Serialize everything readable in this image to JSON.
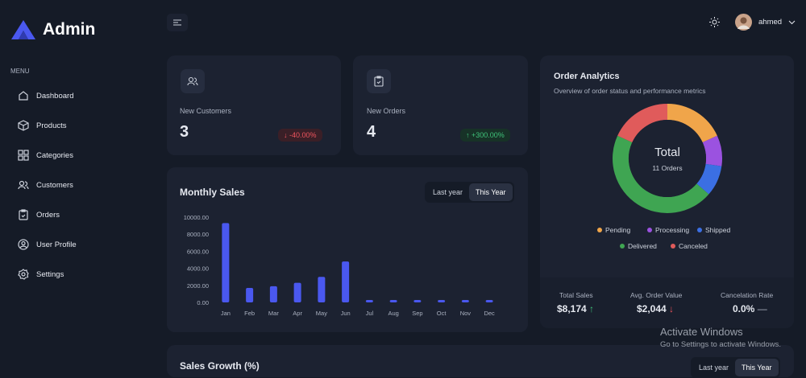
{
  "brand": "Admin",
  "sidebar": {
    "section": "MENU",
    "items": [
      "Dashboard",
      "Products",
      "Categories",
      "Customers",
      "Orders",
      "User Profile",
      "Settings"
    ]
  },
  "header": {
    "user": "ahmed"
  },
  "cards": [
    {
      "label": "New Customers",
      "value": 3,
      "change": "-40.00%"
    },
    {
      "label": "New Orders",
      "value": 4,
      "change": "+300.00%"
    }
  ],
  "monthly_sales": {
    "type": "bar",
    "title": "Monthly Sales",
    "toggle": [
      "Last year",
      "This Year"
    ],
    "categories": [
      "Jan",
      "Feb",
      "Mar",
      "Apr",
      "May",
      "Jun",
      "Jul",
      "Aug",
      "Sep",
      "Oct",
      "Nov",
      "Dec"
    ],
    "values": [
      9300,
      1700,
      1900,
      2300,
      3000,
      4800,
      0,
      0,
      0,
      0,
      0,
      0
    ],
    "color": "#4a58ef",
    "ylim": [
      0,
      10000
    ],
    "yticks": [
      {
        "value": 0,
        "label": "0.00"
      },
      {
        "value": 2000,
        "label": "2000.00"
      },
      {
        "value": 4000,
        "label": "4000.00"
      },
      {
        "value": 6000,
        "label": "6000.00"
      },
      {
        "value": 8000,
        "label": "8000.00"
      },
      {
        "value": 10000,
        "label": "10000.00"
      }
    ]
  },
  "order_analytics": {
    "type": "pie",
    "title": "Order Analytics",
    "subtitle": "Overview of order status and performance metrics",
    "center_title": "Total",
    "center_label": "11 Orders",
    "categories": [
      "Pending",
      "Processing",
      "Shipped",
      "Delivered",
      "Canceled"
    ],
    "values": [
      2,
      1,
      1,
      5,
      2
    ],
    "colors": [
      "#f0a54a",
      "#9b52e0",
      "#3b6fe3",
      "#3fa552",
      "#e05b5b"
    ]
  },
  "stats": [
    {
      "label": "Total Sales",
      "value": "$8,174"
    },
    {
      "label": "Avg. Order Value",
      "value": "$2,044"
    },
    {
      "label": "Cancelation Rate",
      "value": "0.0%"
    }
  ],
  "sales_growth": {
    "title": "Sales Growth (%)",
    "toggle": [
      "Last year",
      "This Year"
    ]
  },
  "watermark": {
    "title": "Activate Windows",
    "text": "Go to Settings to activate Windows."
  }
}
